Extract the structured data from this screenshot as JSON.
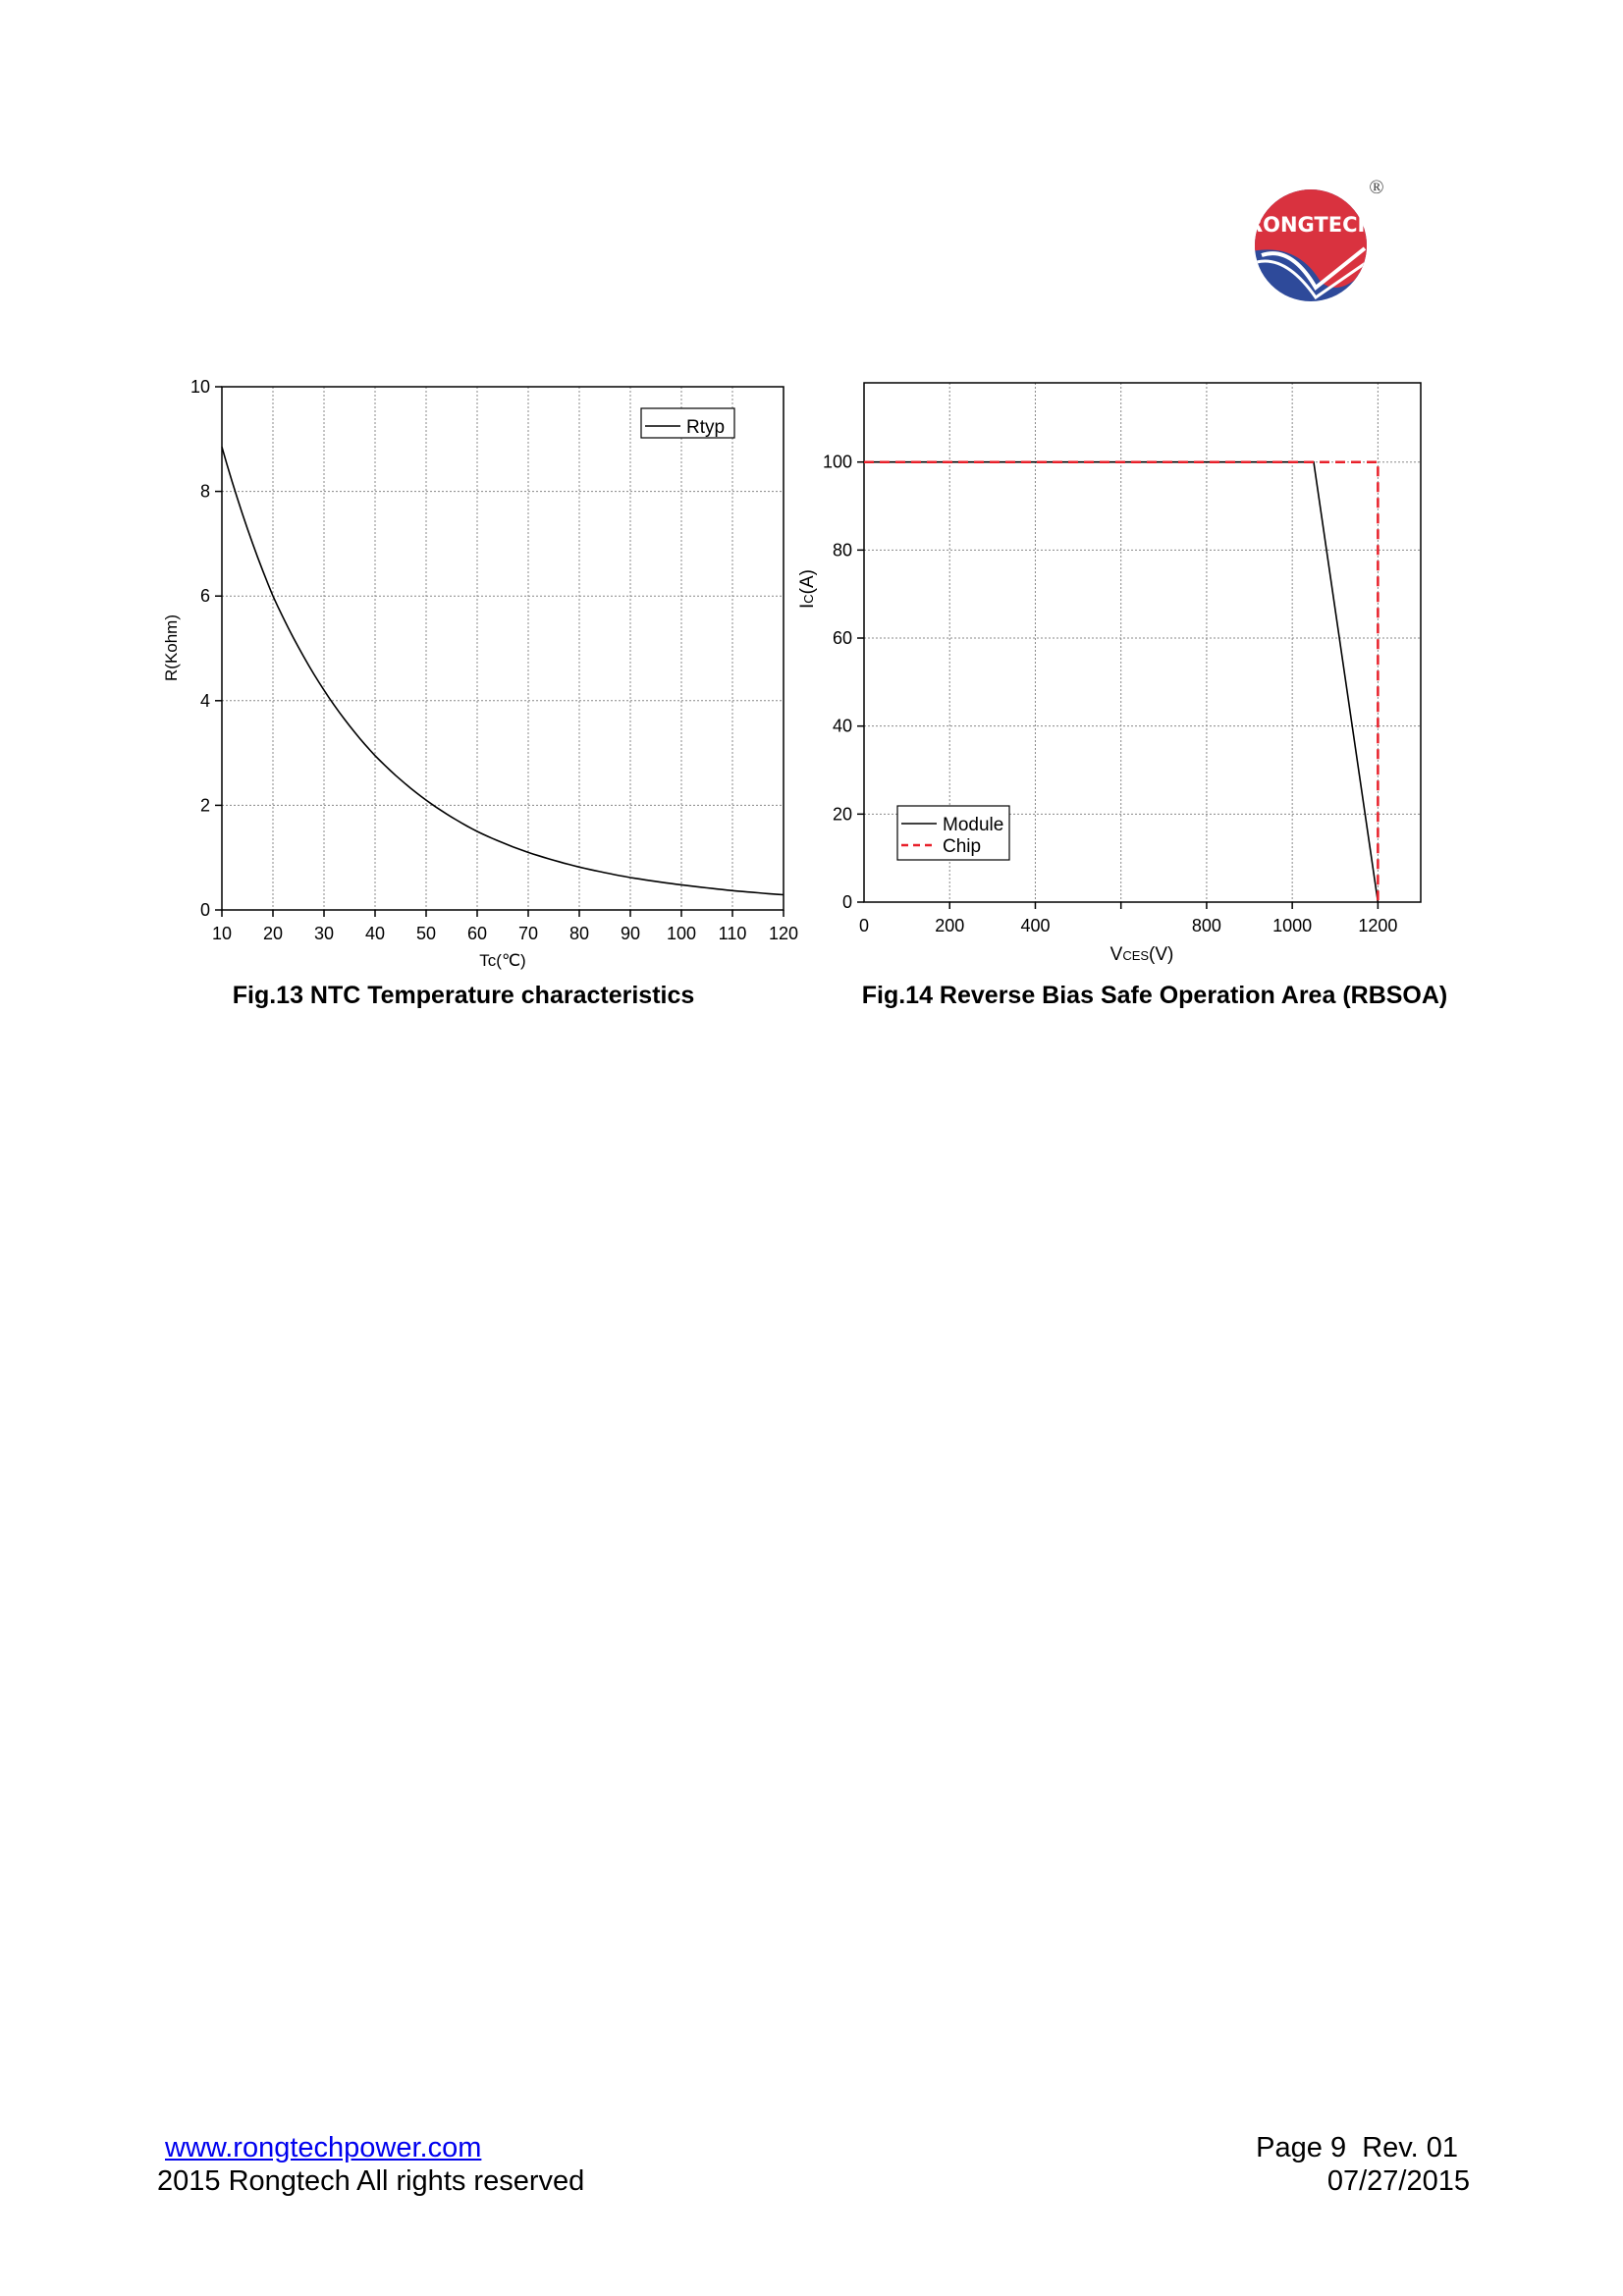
{
  "logo": {
    "text": "RONGTECH",
    "registered_mark": "®",
    "colors": {
      "red": "#d9323f",
      "blue": "#2e4a9a"
    }
  },
  "figures": [
    {
      "caption": "Fig.13 NTC Temperature characteristics"
    },
    {
      "caption": "Fig.14 Reverse Bias Safe Operation Area (RBSOA)"
    }
  ],
  "chart_data": [
    {
      "type": "line",
      "title": "Fig.13 NTC Temperature characteristics",
      "xlabel": "Tc(℃)",
      "ylabel": "R(Kohm)",
      "xlim": [
        10,
        120
      ],
      "ylim": [
        0,
        10
      ],
      "xticks": [
        10,
        20,
        30,
        40,
        50,
        60,
        70,
        80,
        90,
        100,
        110,
        120
      ],
      "yticks": [
        0,
        2,
        4,
        6,
        8,
        10
      ],
      "grid": true,
      "legend": "top-right",
      "series": [
        {
          "name": "Rtyp",
          "color": "#000000",
          "style": "solid",
          "x": [
            10,
            20,
            30,
            40,
            50,
            60,
            70,
            80,
            90,
            100,
            110,
            120
          ],
          "y": [
            8.85,
            6.0,
            4.2,
            2.95,
            2.1,
            1.5,
            1.1,
            0.82,
            0.62,
            0.48,
            0.37,
            0.29
          ]
        }
      ]
    },
    {
      "type": "line",
      "title": "Fig.14 Reverse Bias Safe Operation Area (RBSOA)",
      "xlabel": "VCES(V)",
      "xlabel_main": "V",
      "xlabel_sub": "CES",
      "xlabel_tail": "(V)",
      "ylabel": "IC(A)",
      "ylabel_main": "I",
      "ylabel_sub": "C",
      "ylabel_tail": "(A)",
      "xlim": [
        0,
        1300
      ],
      "ylim": [
        0,
        118
      ],
      "xticks": [
        0,
        200,
        400,
        800,
        1000,
        1200
      ],
      "xgrid": [
        200,
        400,
        600,
        800,
        1000,
        1200
      ],
      "yticks": [
        0,
        20,
        40,
        60,
        80,
        100
      ],
      "grid": true,
      "legend": "bottom-left",
      "series": [
        {
          "name": "Module",
          "color": "#000000",
          "style": "solid",
          "x": [
            0,
            1050,
            1200
          ],
          "y": [
            100,
            100,
            0
          ]
        },
        {
          "name": "Chip",
          "color": "#e8202a",
          "style": "dashed",
          "x": [
            0,
            1200,
            1200
          ],
          "y": [
            100,
            100,
            0
          ]
        }
      ]
    }
  ],
  "footer": {
    "website": "www.rongtechpower.com",
    "copyright": "2015 Rongtech All rights reserved",
    "page": "Page 9  Rev. 01",
    "date": "07/27/2015"
  }
}
